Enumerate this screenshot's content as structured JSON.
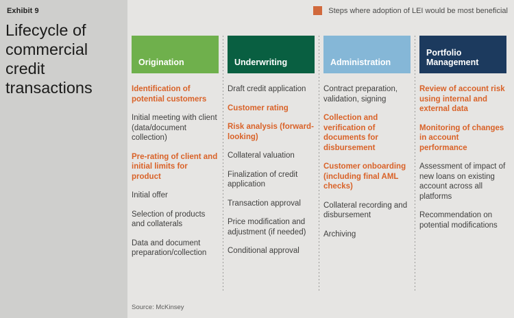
{
  "exhibit_label": "Exhibit 9",
  "title": "Lifecycle of commercial credit transactions",
  "legend": {
    "swatch_color": "#d1693c",
    "label": "Steps where adoption of LEI would be most beneficial"
  },
  "colors": {
    "background": "#e6e5e3",
    "title_panel": "#cfcfcd",
    "highlight_text": "#d96228",
    "body_text": "#3f3f3e"
  },
  "columns": [
    {
      "header": "Origination",
      "header_color": "#6fb04c",
      "items": [
        {
          "text": "Identification of potential customers",
          "highlight": true
        },
        {
          "text": "Initial meeting with client (data/document collection)",
          "highlight": false
        },
        {
          "text": "Pre-rating of client and initial limits for product",
          "highlight": true
        },
        {
          "text": "Initial offer",
          "highlight": false
        },
        {
          "text": "Selection of products and collaterals",
          "highlight": false
        },
        {
          "text": "Data and document preparation/collection",
          "highlight": false
        }
      ]
    },
    {
      "header": "Underwriting",
      "header_color": "#095f41",
      "items": [
        {
          "text": "Draft credit application",
          "highlight": false
        },
        {
          "text": "Customer rating",
          "highlight": true
        },
        {
          "text": "Risk analysis (forward-looking)",
          "highlight": true
        },
        {
          "text": "Collateral valuation",
          "highlight": false
        },
        {
          "text": "Finalization of credit application",
          "highlight": false
        },
        {
          "text": "Transaction approval",
          "highlight": false
        },
        {
          "text": "Price modification and adjustment (if needed)",
          "highlight": false
        },
        {
          "text": "Conditional approval",
          "highlight": false
        }
      ]
    },
    {
      "header": "Administration",
      "header_color": "#85b7d7",
      "items": [
        {
          "text": "Contract preparation, validation, signing",
          "highlight": false
        },
        {
          "text": "Collection and verification of documents for disbursement",
          "highlight": true
        },
        {
          "text": "Customer onboarding (including final AML checks)",
          "highlight": true
        },
        {
          "text": "Collateral recording and disbursement",
          "highlight": false
        },
        {
          "text": "Archiving",
          "highlight": false
        }
      ]
    },
    {
      "header": "Portfolio Management",
      "header_color": "#1c3a5e",
      "items": [
        {
          "text": "Review of account risk using internal and external data",
          "highlight": true
        },
        {
          "text": "Monitoring of changes in account performance",
          "highlight": true
        },
        {
          "text": "Assessment of impact of new loans on existing account across all platforms",
          "highlight": false
        },
        {
          "text": "Recommendation on potential modifications",
          "highlight": false
        }
      ]
    }
  ],
  "source": "Source: McKinsey"
}
